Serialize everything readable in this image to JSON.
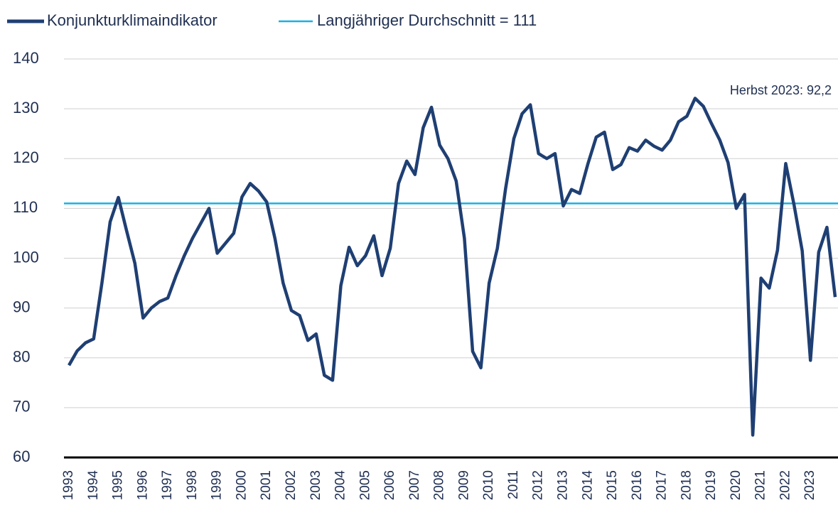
{
  "chart_data": {
    "type": "line",
    "categories": [
      "1993",
      null,
      null,
      "1994",
      null,
      null,
      "1995",
      null,
      null,
      "1996",
      null,
      null,
      "1997",
      null,
      null,
      "1998",
      null,
      null,
      "1999",
      null,
      null,
      "2000",
      null,
      null,
      "2001",
      null,
      null,
      "2002",
      null,
      null,
      "2003",
      null,
      null,
      "2004",
      null,
      null,
      "2005",
      null,
      null,
      "2006",
      null,
      null,
      "2007",
      null,
      null,
      "2008",
      null,
      null,
      "2009",
      null,
      null,
      "2010",
      null,
      null,
      "2011",
      null,
      null,
      "2012",
      null,
      null,
      "2013",
      null,
      null,
      "2014",
      null,
      null,
      "2015",
      null,
      null,
      "2016",
      null,
      null,
      "2017",
      null,
      null,
      "2018",
      null,
      null,
      "2019",
      null,
      null,
      "2020",
      null,
      null,
      "2021",
      null,
      null,
      "2022",
      null,
      null,
      "2023",
      null,
      null,
      null
    ],
    "series": [
      {
        "name": "Konjunkturklimaindikator",
        "color": "#1f3f73",
        "values": [
          78.5,
          81.4,
          83,
          83.8,
          95,
          107.3,
          112.2,
          105.5,
          99,
          88,
          90,
          91.3,
          92,
          96.5,
          100.5,
          104,
          107,
          110,
          101,
          103,
          105,
          112.3,
          115,
          113.5,
          111.3,
          104,
          95,
          89.5,
          88.5,
          83.5,
          84.8,
          76.5,
          75.5,
          94.5,
          102.2,
          98.5,
          100.5,
          104.5,
          96.5,
          102,
          115,
          119.5,
          116.8,
          126.2,
          130.3,
          122.7,
          120,
          115.5,
          104,
          81.3,
          78,
          95,
          102,
          114,
          124,
          129,
          130.8,
          121,
          120,
          121,
          110.5,
          113.8,
          113,
          119,
          124.3,
          125.3,
          117.8,
          118.8,
          122.2,
          121.5,
          123.7,
          122.5,
          121.7,
          123.7,
          127.4,
          128.5,
          132.1,
          130.5,
          127,
          123.7,
          119.2,
          110,
          112.8,
          64.5,
          96,
          94,
          101.6,
          119,
          110.8,
          101.5,
          79.5,
          101.2,
          106.2,
          92.2
        ]
      }
    ],
    "reference_line": {
      "name": "Langjähriger Durchschnitt = 111",
      "value": 111,
      "color": "#1ab0e0"
    },
    "annotation": "Herbst 2023: 92,2",
    "ylim": [
      60,
      140
    ],
    "yticks": [
      60,
      70,
      80,
      90,
      100,
      110,
      120,
      130,
      140
    ],
    "grid": true
  }
}
